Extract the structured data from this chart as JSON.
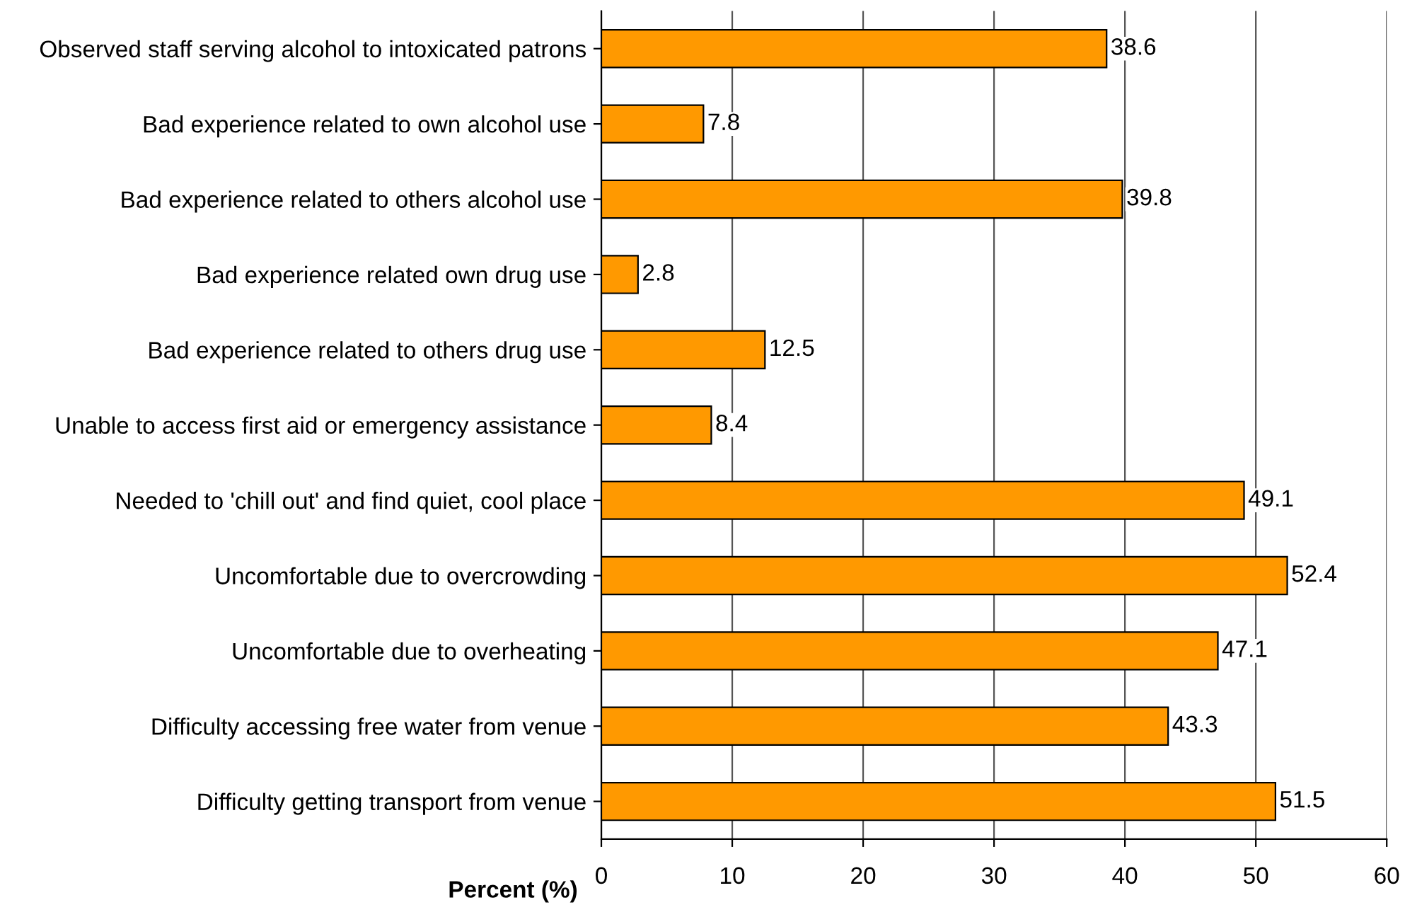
{
  "chart_data": {
    "type": "bar",
    "orientation": "horizontal",
    "xlabel": "Percent (%)",
    "categories": [
      "Observed staff serving alcohol to intoxicated patrons",
      "Bad experience related to own alcohol use",
      "Bad experience related to others alcohol use",
      "Bad experience related own drug use",
      "Bad experience related to others drug use",
      "Unable to access first aid or emergency assistance",
      "Needed to 'chill out' and find quiet, cool place",
      "Uncomfortable due to overcrowding",
      "Uncomfortable due to overheating",
      "Difficulty accessing free water from venue",
      "Difficulty getting transport from venue"
    ],
    "values": [
      38.6,
      7.8,
      39.8,
      2.8,
      12.5,
      8.4,
      49.1,
      52.4,
      47.1,
      43.3,
      51.5
    ],
    "color": "#ff9900",
    "xlim": [
      0,
      60
    ],
    "xticks": [
      0,
      10,
      20,
      30,
      40,
      50,
      60
    ],
    "grid": "x",
    "data_labels": true
  }
}
